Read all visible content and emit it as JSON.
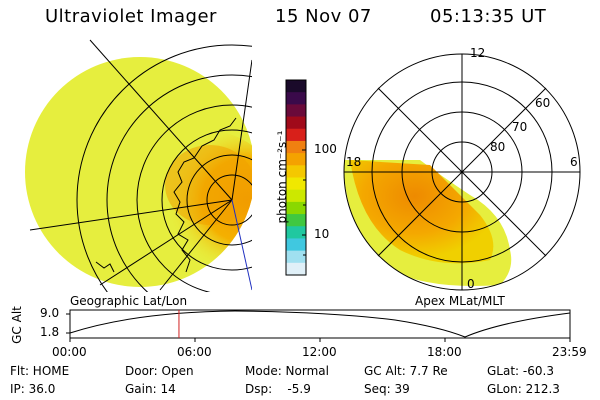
{
  "header": {
    "title": "Ultraviolet Imager",
    "date": "15 Nov 07",
    "time": "05:13:35 UT"
  },
  "left_panel": {
    "label": "Geographic Lat/Lon"
  },
  "right_panel": {
    "label": "Apex MLat/MLT",
    "mlt_labels": [
      "12",
      "18",
      "6",
      "0"
    ],
    "lat_labels": [
      "60",
      "70",
      "80"
    ]
  },
  "colorbar": {
    "unit_label": "photon cm⁻²s⁻¹",
    "ticks": [
      "100",
      "10"
    ],
    "colors": [
      "#1a0a2a",
      "#3a0a4a",
      "#6a0a3a",
      "#a00a1a",
      "#d8201a",
      "#f08010",
      "#f4a200",
      "#f4c800",
      "#f0e800",
      "#cce800",
      "#8ad800",
      "#40c840",
      "#20c8a0",
      "#40c8e0",
      "#a0e0f0",
      "#e0f0f8"
    ]
  },
  "timeline": {
    "axis_label": "GC Alt",
    "y_ticks": [
      "9.0",
      "1.8"
    ],
    "x_ticks": [
      "00:00",
      "06:00",
      "12:00",
      "18:00",
      "23:59"
    ],
    "marker_hours": 5.23
  },
  "status": {
    "filter": "Flt: HOME",
    "ip": "IP: 36.0",
    "door": "Door: Open",
    "gain": "Gain: 14",
    "mode": "Mode: Normal",
    "dsp": "Dsp:    -5.9",
    "gc_alt": "GC Alt: 7.7 Re",
    "seq": "Seq: 39",
    "glat": "GLat: -60.3",
    "glon": "GLon: 212.3"
  },
  "colors": {
    "yellow": "#e8f040",
    "orange": "#f4a000",
    "marker": "#d02020"
  }
}
